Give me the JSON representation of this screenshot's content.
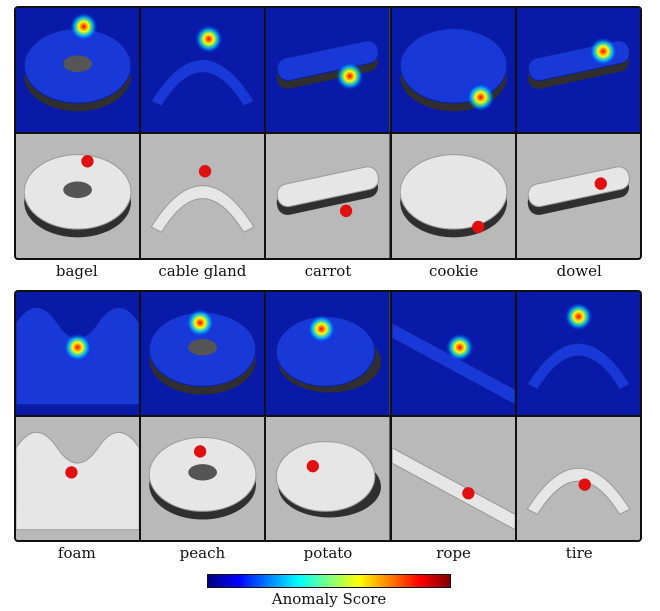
{
  "figure": {
    "groups": [
      {
        "objects": [
          "bagel",
          "cable gland",
          "carrot",
          "cookie",
          "dowel"
        ]
      },
      {
        "objects": [
          "foam",
          "peach",
          "potato",
          "rope",
          "tire"
        ]
      }
    ],
    "colorbar_label": "Anomaly Score",
    "colormap": [
      "#00007f",
      "#0000ff",
      "#0080ff",
      "#00ffff",
      "#80ff80",
      "#ffff00",
      "#ff8000",
      "#ff0000",
      "#7f0000"
    ],
    "anomaly_color": "#e01010",
    "background_color": "#4a4a4a"
  }
}
